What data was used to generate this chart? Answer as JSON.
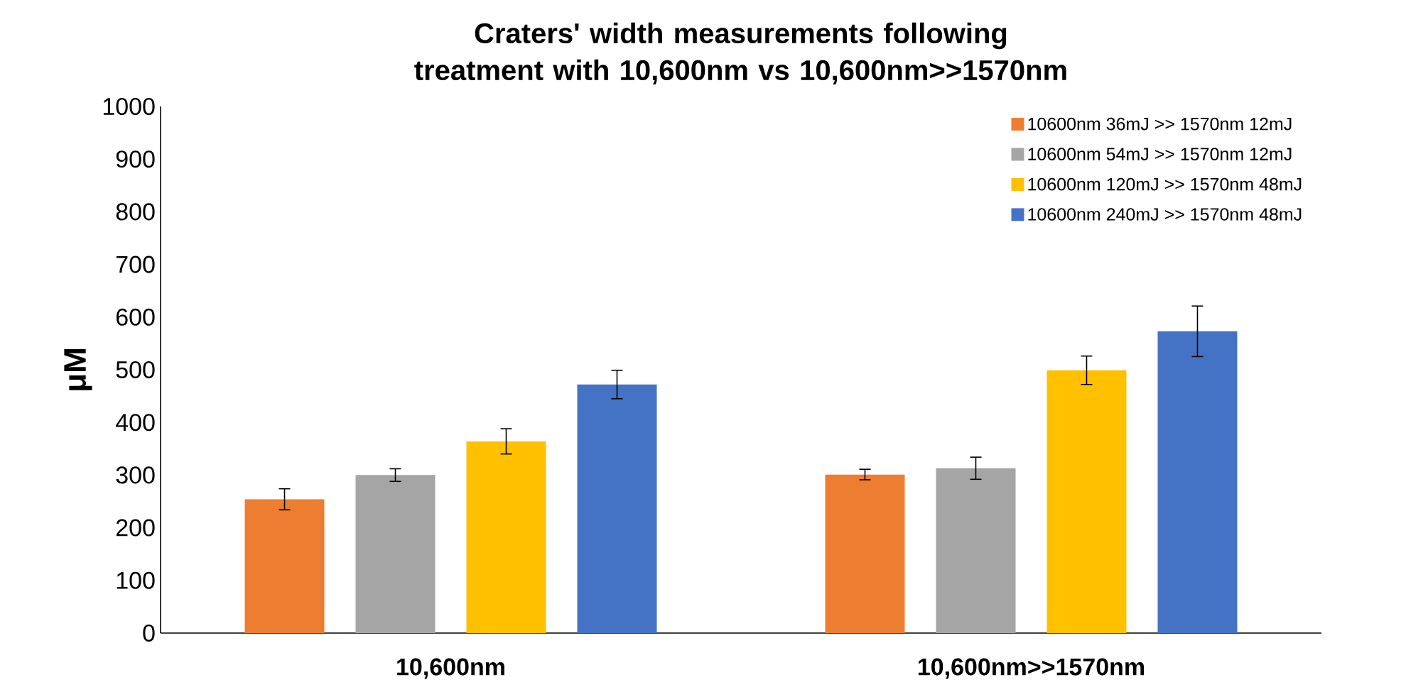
{
  "chart_data": {
    "type": "bar",
    "title": "Craters' width measurements following treatment with 10,600nm vs 10,600nm>>1570nm",
    "ylabel": "μM",
    "categories": [
      "10,600nm",
      "10,600nm>>1570nm"
    ],
    "series": [
      {
        "name": "10600nm 36mJ >> 1570nm 12mJ",
        "color": "#ed7d31",
        "values": [
          254,
          301
        ],
        "errors": [
          20,
          10
        ]
      },
      {
        "name": "10600nm 54mJ >> 1570nm 12mJ",
        "color": "#a5a5a5",
        "values": [
          300,
          313
        ],
        "errors": [
          12,
          21
        ]
      },
      {
        "name": "10600nm 120mJ >> 1570nm 48mJ",
        "color": "#ffc000",
        "values": [
          364,
          499
        ],
        "errors": [
          24,
          27
        ]
      },
      {
        "name": "10600nm 240mJ >> 1570nm 48mJ",
        "color": "#4472c4",
        "values": [
          472,
          573
        ],
        "errors": [
          27,
          48
        ]
      }
    ],
    "ylim": [
      0,
      1000
    ],
    "yticks": [
      0,
      100,
      200,
      300,
      400,
      500,
      600,
      700,
      800,
      900,
      1000
    ],
    "grid": false,
    "legend": "top right"
  }
}
